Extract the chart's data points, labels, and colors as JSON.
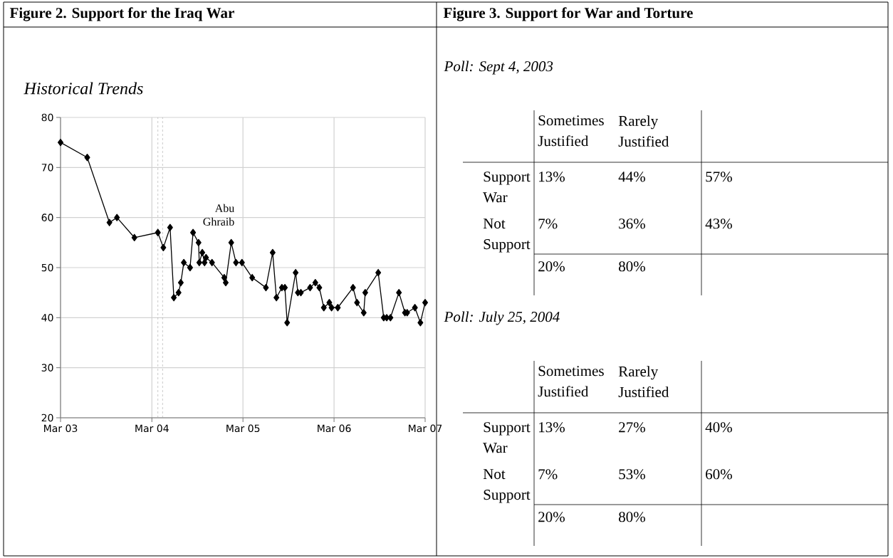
{
  "chart_data": [
    {
      "type": "line",
      "title": "Figure 2. Support for the Iraq War",
      "subtitle": "Historical Trends",
      "x": [
        "2003-03-01",
        "2003-06-16",
        "2003-09-13",
        "2003-10-13",
        "2003-12-22",
        "2004-03-25",
        "2004-04-16",
        "2004-05-13",
        "2004-05-28",
        "2004-06-16",
        "2004-06-25",
        "2004-07-07",
        "2004-08-01",
        "2004-08-13",
        "2004-09-04",
        "2004-09-07",
        "2004-09-19",
        "2004-09-28",
        "2004-10-04",
        "2004-10-28",
        "2004-12-16",
        "2004-12-22",
        "2005-01-13",
        "2005-02-01",
        "2005-02-25",
        "2005-04-07",
        "2005-06-01",
        "2005-06-28",
        "2005-07-13",
        "2005-08-04",
        "2005-08-16",
        "2005-08-25",
        "2005-09-28",
        "2005-10-07",
        "2005-10-19",
        "2005-11-25",
        "2005-12-16",
        "2006-01-01",
        "2006-01-19",
        "2006-02-10",
        "2006-02-19",
        "2006-03-16",
        "2006-05-16",
        "2006-06-01",
        "2006-06-28",
        "2006-07-04",
        "2006-08-25",
        "2006-09-16",
        "2006-09-28",
        "2006-10-13",
        "2006-11-16",
        "2006-12-10",
        "2006-12-19",
        "2007-01-19",
        "2007-02-10",
        "2007-03-01"
      ],
      "values": [
        75,
        72,
        59,
        60,
        56,
        57,
        54,
        58,
        44,
        45,
        47,
        51,
        50,
        57,
        55,
        51,
        53,
        51,
        52,
        51,
        48,
        47,
        55,
        51,
        51,
        48,
        46,
        53,
        44,
        46,
        46,
        39,
        49,
        45,
        45,
        46,
        47,
        46,
        42,
        43,
        42,
        42,
        46,
        43,
        41,
        45,
        49,
        40,
        40,
        40,
        45,
        41,
        41,
        42,
        39,
        43
      ],
      "color": "#000000",
      "marker": "diamond",
      "line_style": "solid",
      "xlim": [
        "2003-03-01",
        "2007-03-01"
      ],
      "xticks": [
        {
          "value": "2003-03-01",
          "label": "Mar 03"
        },
        {
          "value": "2004-03-01",
          "label": "Mar 04"
        },
        {
          "value": "2005-03-01",
          "label": "Mar 05"
        },
        {
          "value": "2006-03-01",
          "label": "Mar 06"
        },
        {
          "value": "2007-03-01",
          "label": "Mar 07"
        }
      ],
      "ylim": [
        20,
        80
      ],
      "yticks": [
        20,
        30,
        40,
        50,
        60,
        70,
        80
      ],
      "grid": true,
      "ref_lines": [
        {
          "axis": "x",
          "value": "2004-03-25",
          "color": "#a6a6a6",
          "line_style": "dashed"
        },
        {
          "axis": "x",
          "value": "2004-04-13",
          "color": "#a6a6a6",
          "line_style": "dashed"
        }
      ],
      "annotations": [
        "Abu Ghraib"
      ]
    },
    {
      "type": "other",
      "title": "Figure 3. Support for War and Torture",
      "subtitle": "Poll: Sept 4, 2003",
      "categories": [
        "Sometimes Justified",
        "Rarely Justified",
        null
      ],
      "y_categories": [
        "Support War",
        "Not Support",
        null
      ],
      "cells": [
        [
          "13%",
          "44%",
          "57%"
        ],
        [
          "7%",
          "36%",
          "43%"
        ],
        [
          "20%",
          "80%",
          null
        ]
      ]
    },
    {
      "type": "other",
      "subtitle": "Poll: July 25, 2004",
      "categories": [
        "Sometimes Justified",
        "Rarely Justified",
        null
      ],
      "y_categories": [
        "Support War",
        "Not Support",
        null
      ],
      "cells": [
        [
          "13%",
          "27%",
          "40%"
        ],
        [
          "7%",
          "53%",
          "60%"
        ],
        [
          "20%",
          "80%",
          null
        ]
      ]
    }
  ]
}
